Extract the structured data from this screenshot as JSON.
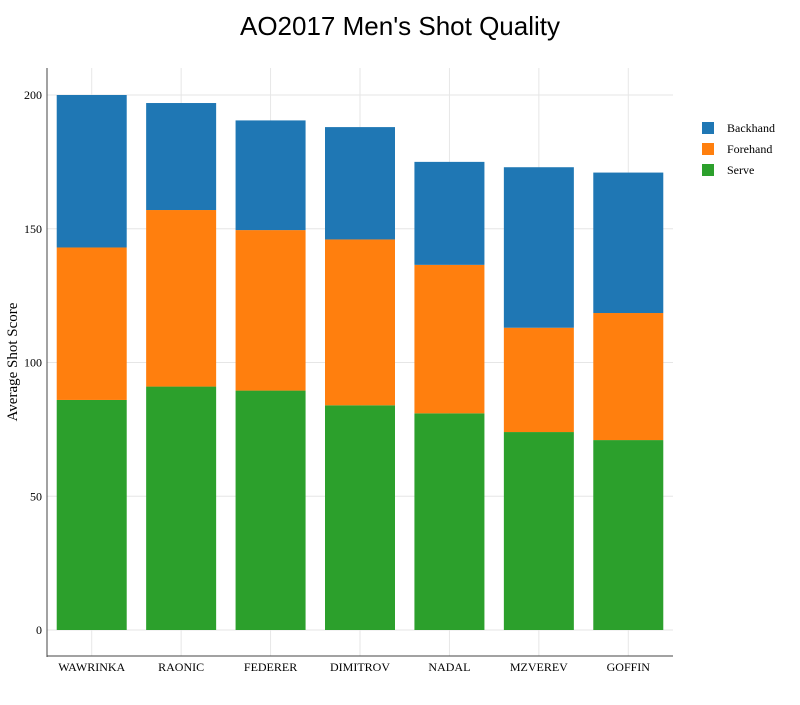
{
  "chart_data": {
    "type": "bar",
    "stacked": true,
    "title": "AO2017 Men's Shot Quality",
    "xlabel": "",
    "ylabel": "Average Shot Score",
    "ylim": [
      0,
      208
    ],
    "yticks": [
      0,
      50,
      100,
      150,
      200
    ],
    "grid": true,
    "legend_position": "right",
    "categories": [
      "WAWRINKA",
      "RAONIC",
      "FEDERER",
      "DIMITROV",
      "NADAL",
      "MZVEREV",
      "GOFFIN"
    ],
    "series": [
      {
        "name": "Serve",
        "color": "#2ca02c",
        "values": [
          86,
          91,
          89.5,
          84,
          81,
          74,
          71
        ]
      },
      {
        "name": "Forehand",
        "color": "#ff7f0e",
        "values": [
          57,
          66,
          60,
          62,
          55.5,
          39,
          47.5
        ]
      },
      {
        "name": "Backhand",
        "color": "#1f77b4",
        "values": [
          57,
          40,
          41,
          42,
          38.5,
          60,
          52.5
        ]
      }
    ],
    "legend_order": [
      "Backhand",
      "Forehand",
      "Serve"
    ]
  }
}
